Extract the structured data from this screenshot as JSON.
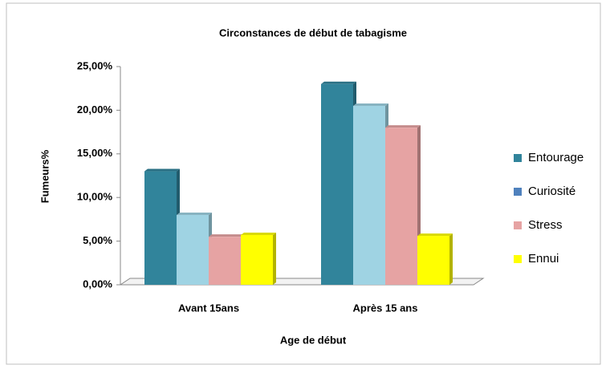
{
  "chart_data": {
    "type": "bar",
    "title": "Circonstances de début de tabagisme",
    "x_label": "Age de début",
    "y_label": "Fumeurs%",
    "categories": [
      "Avant 15ans",
      "Après 15 ans"
    ],
    "series": [
      {
        "name": "Entourage",
        "color": "#31849b",
        "values": [
          13,
          23
        ]
      },
      {
        "name": "Curiosité",
        "color": "#9fd3e3",
        "legend_color": "#4f81bd",
        "values": [
          8,
          20.5
        ]
      },
      {
        "name": "Stress",
        "color": "#e6a3a3",
        "values": [
          5.5,
          18
        ]
      },
      {
        "name": "Ennui",
        "color": "#ffff00",
        "values": [
          5.7,
          5.6
        ]
      }
    ],
    "ylim": [
      0,
      25
    ],
    "yticks": [
      {
        "value": 0,
        "label": "0,00%"
      },
      {
        "value": 5,
        "label": "5,00%"
      },
      {
        "value": 10,
        "label": "10,00%"
      },
      {
        "value": 15,
        "label": "15,00%"
      },
      {
        "value": 20,
        "label": "20,00%"
      },
      {
        "value": 25,
        "label": "25,00%"
      }
    ],
    "legend": "right"
  }
}
